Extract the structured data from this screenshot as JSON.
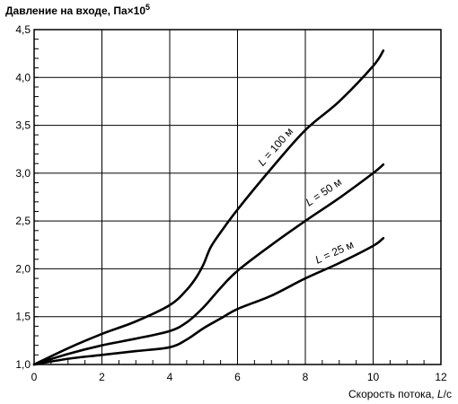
{
  "chart_data": {
    "type": "line",
    "ylabel": "Давление на входе, Па×10",
    "ylabel_exponent": "5",
    "xlabel": "Скорость потока, ",
    "xlabel_italic": "L",
    "xlabel_unit": "/c",
    "xlim": [
      0,
      12
    ],
    "ylim": [
      1.0,
      4.5
    ],
    "x_ticks": [
      0,
      2,
      4,
      6,
      8,
      10,
      12
    ],
    "x_tick_labels": [
      "0",
      "2",
      "4",
      "6",
      "8",
      "10",
      "12"
    ],
    "y_ticks": [
      1.0,
      1.5,
      2.0,
      2.5,
      3.0,
      3.5,
      4.0,
      4.5
    ],
    "y_tick_labels": [
      "1,0",
      "1,5",
      "2,0",
      "2,5",
      "3,0",
      "3,5",
      "4,0",
      "4,5"
    ],
    "grid": true,
    "line_color": "#000000",
    "series": [
      {
        "name": "L = 100 м",
        "label_italic": "L",
        "label_rest": " = 100 м",
        "x": [
          0,
          1,
          2,
          3,
          4,
          4.5,
          4.8,
          5.0,
          5.2,
          5.5,
          6.0,
          7.0,
          8.0,
          9.0,
          10.0,
          10.3
        ],
        "y": [
          1.0,
          1.17,
          1.32,
          1.45,
          1.62,
          1.78,
          1.92,
          2.05,
          2.22,
          2.38,
          2.62,
          3.05,
          3.45,
          3.75,
          4.12,
          4.28
        ]
      },
      {
        "name": "L = 50 м",
        "label_italic": "L",
        "label_rest": " = 50 м",
        "x": [
          0,
          1,
          2,
          3,
          4,
          4.5,
          5.0,
          5.5,
          6.0,
          7.0,
          8.0,
          9.0,
          10.0,
          10.3
        ],
        "y": [
          1.0,
          1.11,
          1.2,
          1.27,
          1.35,
          1.44,
          1.6,
          1.8,
          1.98,
          2.25,
          2.5,
          2.74,
          3.0,
          3.09
        ]
      },
      {
        "name": "L = 25 м",
        "label_italic": "L",
        "label_rest": " = 25 м",
        "x": [
          0,
          1,
          2,
          3,
          4,
          4.5,
          5.0,
          5.5,
          6.0,
          7.0,
          8.0,
          9.0,
          10.0,
          10.3
        ],
        "y": [
          1.0,
          1.06,
          1.1,
          1.14,
          1.18,
          1.26,
          1.38,
          1.48,
          1.58,
          1.72,
          1.9,
          2.06,
          2.24,
          2.32
        ]
      }
    ]
  }
}
